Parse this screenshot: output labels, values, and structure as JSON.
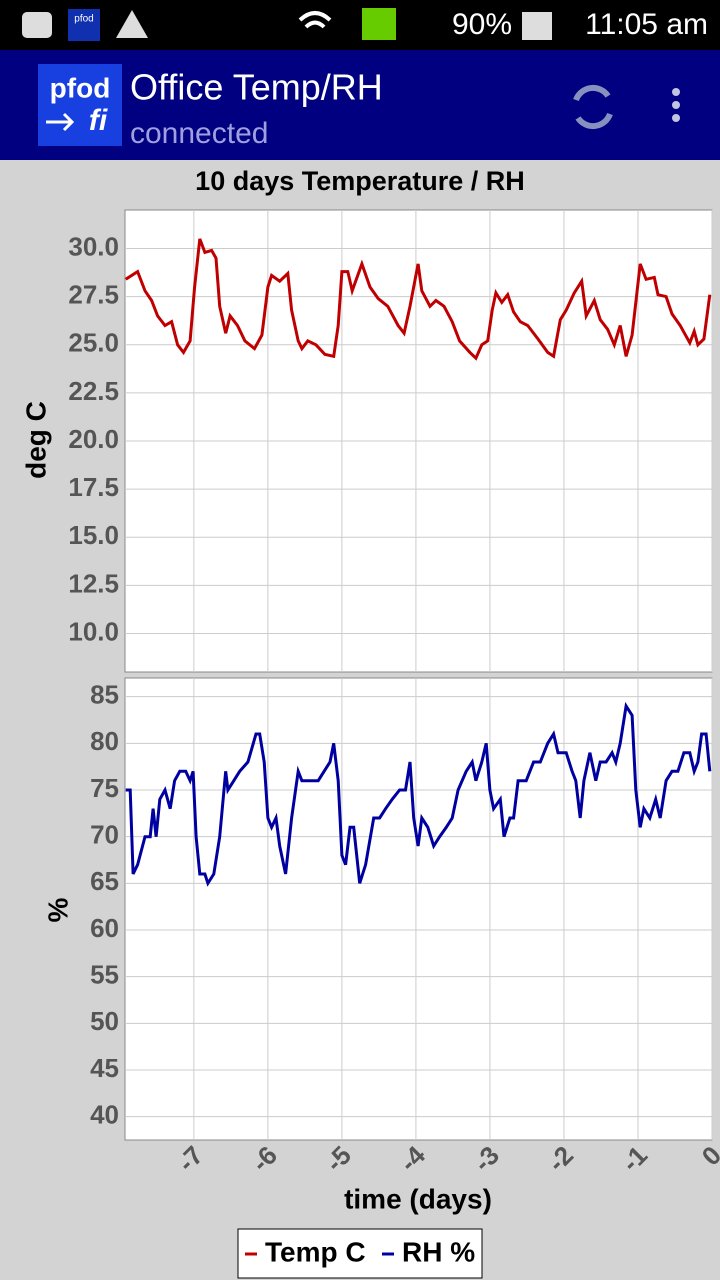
{
  "status_bar": {
    "battery": "90%",
    "time": "11:05 am"
  },
  "app_bar": {
    "logo": {
      "line1": "pfod",
      "line2": "fi"
    },
    "title": "Office Temp/RH",
    "subtitle": "connected"
  },
  "chart_data": [
    {
      "type": "line",
      "title": "10 days Temperature / RH",
      "ylabel": "deg C",
      "x": [
        -7.92,
        -7.76,
        -7.66,
        -7.57,
        -7.49,
        -7.39,
        -7.3,
        -7.22,
        -7.14,
        -7.05,
        -6.99,
        -6.92,
        -6.85,
        -6.76,
        -6.7,
        -6.65,
        -6.57,
        -6.51,
        -6.41,
        -6.31,
        -6.18,
        -6.08,
        -6.0,
        -5.95,
        -5.84,
        -5.73,
        -5.68,
        -5.59,
        -5.54,
        -5.46,
        -5.35,
        -5.23,
        -5.11,
        -5.05,
        -5.0,
        -4.92,
        -4.86,
        -4.73,
        -4.62,
        -4.51,
        -4.38,
        -4.24,
        -4.16,
        -4.08,
        -3.97,
        -3.92,
        -3.81,
        -3.73,
        -3.62,
        -3.51,
        -3.41,
        -3.27,
        -3.19,
        -3.11,
        -3.03,
        -2.97,
        -2.92,
        -2.84,
        -2.76,
        -2.68,
        -2.59,
        -2.49,
        -2.35,
        -2.22,
        -2.14,
        -2.05,
        -1.97,
        -1.86,
        -1.76,
        -1.7,
        -1.59,
        -1.51,
        -1.41,
        -1.32,
        -1.24,
        -1.16,
        -1.08,
        -0.97,
        -0.89,
        -0.78,
        -0.73,
        -0.62,
        -0.54,
        -0.43,
        -0.3,
        -0.24,
        -0.19,
        -0.11,
        -0.03
      ],
      "series": [
        {
          "name": "Temp C",
          "color": "#c00000",
          "values": [
            28.4,
            28.8,
            27.8,
            27.3,
            26.5,
            26.0,
            26.2,
            25.0,
            24.6,
            25.2,
            28.0,
            30.5,
            29.8,
            29.9,
            29.5,
            27.0,
            25.6,
            26.5,
            26.0,
            25.2,
            24.8,
            25.5,
            28.0,
            28.6,
            28.3,
            28.7,
            26.8,
            25.2,
            24.8,
            25.2,
            25.0,
            24.5,
            24.4,
            26.0,
            28.8,
            28.8,
            27.8,
            29.2,
            28.0,
            27.4,
            27.0,
            26.0,
            25.6,
            27.0,
            29.2,
            27.8,
            27.0,
            27.3,
            27.0,
            26.2,
            25.2,
            24.6,
            24.3,
            25.0,
            25.2,
            26.8,
            27.7,
            27.2,
            27.6,
            26.7,
            26.2,
            26.0,
            25.3,
            24.6,
            24.4,
            26.3,
            26.8,
            27.7,
            28.3,
            26.5,
            27.3,
            26.3,
            25.8,
            25.0,
            26.0,
            24.4,
            25.5,
            29.2,
            28.4,
            28.5,
            27.6,
            27.5,
            26.6,
            26.0,
            25.1,
            25.7,
            25.0,
            25.3,
            27.6
          ]
        }
      ],
      "ylim": [
        8,
        32
      ],
      "yticks": [
        {
          "value": 10,
          "label": "10.0"
        },
        12.5,
        {
          "value": 15,
          "label": "15.0"
        },
        17.5,
        {
          "value": 20,
          "label": "20.0"
        },
        22.5,
        {
          "value": 25,
          "label": "25.0"
        },
        27.5,
        {
          "value": 30,
          "label": "30.0"
        }
      ],
      "grid": true
    },
    {
      "type": "line",
      "ylabel": "%",
      "xlabel": "time (days)",
      "x": [
        -7.92,
        -7.86,
        -7.82,
        -7.76,
        -7.66,
        -7.59,
        -7.55,
        -7.51,
        -7.46,
        -7.39,
        -7.32,
        -7.26,
        -7.19,
        -7.11,
        -7.05,
        -7.01,
        -6.97,
        -6.92,
        -6.85,
        -6.81,
        -6.73,
        -6.65,
        -6.57,
        -6.54,
        -6.46,
        -6.38,
        -6.27,
        -6.16,
        -6.11,
        -6.05,
        -6.0,
        -5.95,
        -5.89,
        -5.84,
        -5.76,
        -5.68,
        -5.59,
        -5.54,
        -5.43,
        -5.32,
        -5.24,
        -5.16,
        -5.11,
        -5.05,
        -5.0,
        -4.95,
        -4.89,
        -4.84,
        -4.76,
        -4.68,
        -4.57,
        -4.49,
        -4.41,
        -4.32,
        -4.22,
        -4.14,
        -4.08,
        -4.03,
        -3.97,
        -3.92,
        -3.84,
        -3.76,
        -3.68,
        -3.59,
        -3.51,
        -3.43,
        -3.32,
        -3.24,
        -3.19,
        -3.11,
        -3.05,
        -3.0,
        -2.95,
        -2.86,
        -2.81,
        -2.73,
        -2.68,
        -2.62,
        -2.51,
        -2.41,
        -2.32,
        -2.22,
        -2.14,
        -2.08,
        -1.97,
        -1.89,
        -1.84,
        -1.78,
        -1.73,
        -1.65,
        -1.57,
        -1.51,
        -1.43,
        -1.35,
        -1.3,
        -1.24,
        -1.16,
        -1.08,
        -1.03,
        -0.97,
        -0.92,
        -0.84,
        -0.76,
        -0.7,
        -0.62,
        -0.54,
        -0.46,
        -0.38,
        -0.3,
        -0.24,
        -0.19,
        -0.14,
        -0.08,
        -0.03
      ],
      "series": [
        {
          "name": "RH %",
          "color": "#0000a0",
          "values": [
            75,
            75,
            66,
            67,
            70,
            70,
            73,
            70,
            74,
            75,
            73,
            76,
            77,
            77,
            76,
            77,
            70,
            66,
            66,
            65,
            66,
            70,
            77,
            75,
            76,
            77,
            78,
            81,
            81,
            78,
            72,
            71,
            72,
            69,
            66,
            72,
            77,
            76,
            76,
            76,
            77,
            78,
            80,
            76,
            68,
            67,
            71,
            71,
            65,
            67,
            72,
            72,
            73,
            74,
            75,
            75,
            78,
            72,
            69,
            72,
            71,
            69,
            70,
            71,
            72,
            75,
            77,
            78,
            76,
            78,
            80,
            75,
            73,
            74,
            70,
            72,
            72,
            76,
            76,
            78,
            78,
            80,
            81,
            79,
            79,
            77,
            76,
            72,
            76,
            79,
            76,
            78,
            78,
            79,
            78,
            80,
            84,
            83,
            75,
            71,
            73,
            72,
            74,
            72,
            76,
            77,
            77,
            79,
            79,
            77,
            78,
            81,
            81,
            77
          ]
        }
      ],
      "xlim": [
        -7.93,
        0
      ],
      "xticks": [
        -7,
        -6,
        -5,
        -4,
        -3,
        -2,
        -1,
        0
      ],
      "ylim": [
        37.5,
        87
      ],
      "yticks": [
        40,
        45,
        50,
        55,
        60,
        65,
        70,
        75,
        80,
        85
      ],
      "grid": true
    }
  ]
}
